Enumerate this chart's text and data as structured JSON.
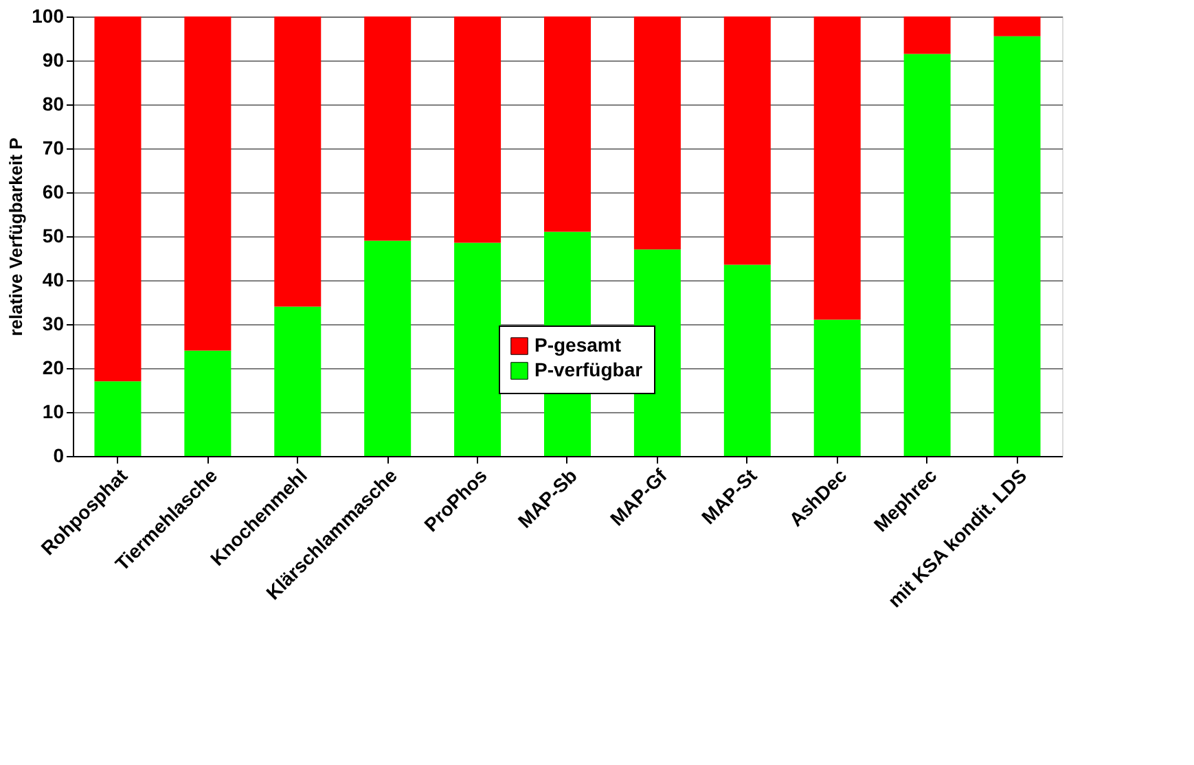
{
  "chart_data": {
    "type": "bar",
    "stacked": true,
    "ylabel": "relative Verfügbarkeit P",
    "categories": [
      "Rohposphat",
      "Tiermehlasche",
      "Knochenmehl",
      "Klärschlammasche",
      "ProPhos",
      "MAP-Sb",
      "MAP-Gf",
      "MAP-St",
      "AshDec",
      "Mephrec",
      "mit KSA kondit. LDS"
    ],
    "series": [
      {
        "name": "P-verfügbar",
        "color": "#00ff00",
        "values": [
          17,
          24,
          34,
          49,
          48.5,
          51,
          47,
          43.5,
          31,
          91.5,
          95.5
        ]
      },
      {
        "name": "P-gesamt",
        "color": "#ff0000",
        "values": [
          83,
          76,
          66,
          51,
          51.5,
          49,
          53,
          56.5,
          69,
          8.5,
          4.5
        ]
      }
    ],
    "ylim": [
      0,
      100
    ],
    "yticks": [
      0,
      10,
      20,
      30,
      40,
      50,
      60,
      70,
      80,
      90,
      100
    ],
    "grid": "y",
    "legend": "bottom"
  }
}
